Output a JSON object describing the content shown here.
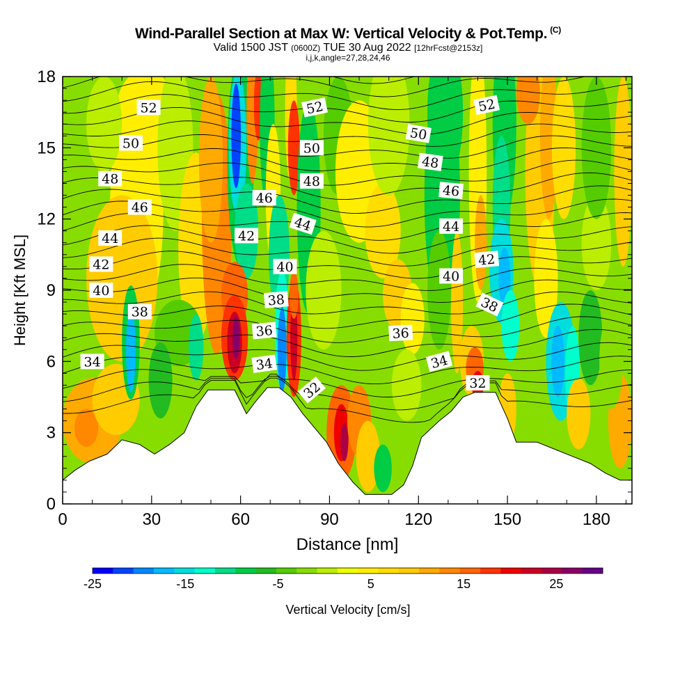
{
  "header": {
    "title": "Wind-Parallel Section at Max W: Vertical Velocity & Pot.Temp.",
    "title_suffix": "(C)",
    "subtitle_a": "Valid 1500 JST",
    "subtitle_b": "(0600Z)",
    "subtitle_c": "TUE 30 Aug 2022",
    "subtitle_d": "[12hrFcst@2153z]",
    "subtitle2": "i,j,k,angle=27,28,24,46"
  },
  "chart_data": {
    "type": "heatmap",
    "title": "Wind-Parallel Section at Max W: Vertical Velocity & Pot.Temp.",
    "xlabel": "Distance [nm]",
    "ylabel": "Height [Kft MSL]",
    "xlim": [
      0,
      192
    ],
    "ylim": [
      0,
      18
    ],
    "x_ticks": [
      0,
      30,
      60,
      90,
      120,
      150,
      180
    ],
    "y_ticks": [
      0,
      3,
      6,
      9,
      12,
      15,
      18
    ],
    "colorbar": {
      "label": "Vertical Velocity [cm/s]",
      "range": [
        -25,
        30
      ],
      "tick_values": [
        -25,
        -15,
        -5,
        5,
        15,
        25
      ],
      "tick_labels": [
        "-25",
        "-15",
        "-5",
        "5",
        "15",
        "25"
      ],
      "colors": [
        "#0000ff",
        "#0044ff",
        "#0088ff",
        "#00bbff",
        "#00dddd",
        "#00ffcc",
        "#00dd88",
        "#00cc44",
        "#22bb22",
        "#55cc00",
        "#88dd00",
        "#bbee00",
        "#eeff00",
        "#ffee00",
        "#ffdd00",
        "#ffcc00",
        "#ffaa00",
        "#ff8800",
        "#ff6600",
        "#ff3300",
        "#ee0000",
        "#cc0022",
        "#aa0044",
        "#880066",
        "#660088"
      ]
    },
    "terrain_kft": [
      [
        0,
        1.0
      ],
      [
        4,
        1.4
      ],
      [
        9,
        1.8
      ],
      [
        15,
        2.1
      ],
      [
        20,
        2.7
      ],
      [
        26,
        2.5
      ],
      [
        31,
        2.1
      ],
      [
        36,
        2.5
      ],
      [
        41,
        3.0
      ],
      [
        45,
        4.1
      ],
      [
        49,
        4.8
      ],
      [
        53,
        4.8
      ],
      [
        58,
        4.8
      ],
      [
        62,
        3.8
      ],
      [
        65,
        4.3
      ],
      [
        69,
        4.9
      ],
      [
        73,
        4.9
      ],
      [
        77,
        4.5
      ],
      [
        81,
        3.8
      ],
      [
        85,
        3.2
      ],
      [
        89,
        2.6
      ],
      [
        93,
        1.7
      ],
      [
        98,
        0.9
      ],
      [
        102,
        0.4
      ],
      [
        106,
        0.4
      ],
      [
        111,
        0.4
      ],
      [
        115,
        0.8
      ],
      [
        118,
        1.6
      ],
      [
        121,
        2.8
      ],
      [
        127,
        3.5
      ],
      [
        131,
        3.9
      ],
      [
        135,
        4.5
      ],
      [
        139,
        4.7
      ],
      [
        146,
        4.7
      ],
      [
        150,
        3.6
      ],
      [
        153,
        2.6
      ],
      [
        160,
        2.6
      ],
      [
        166,
        2.3
      ],
      [
        172,
        2.0
      ],
      [
        178,
        1.7
      ],
      [
        183,
        1.3
      ],
      [
        188,
        1.0
      ],
      [
        192,
        1.0
      ]
    ],
    "theta_contour_labels": [
      {
        "text": "52",
        "x": 29,
        "y": 16.7,
        "rot": 0
      },
      {
        "text": "50",
        "x": 23,
        "y": 15.2,
        "rot": 0
      },
      {
        "text": "48",
        "x": 16,
        "y": 13.7,
        "rot": 0
      },
      {
        "text": "46",
        "x": 26,
        "y": 12.5,
        "rot": 0
      },
      {
        "text": "44",
        "x": 16,
        "y": 11.2,
        "rot": 0
      },
      {
        "text": "42",
        "x": 13,
        "y": 10.1,
        "rot": 0
      },
      {
        "text": "40",
        "x": 13,
        "y": 9.0,
        "rot": 0
      },
      {
        "text": "38",
        "x": 26,
        "y": 8.1,
        "rot": 0
      },
      {
        "text": "34",
        "x": 10,
        "y": 6.0,
        "rot": 0
      },
      {
        "text": "46",
        "x": 68,
        "y": 12.9,
        "rot": 0
      },
      {
        "text": "42",
        "x": 62,
        "y": 11.3,
        "rot": 0
      },
      {
        "text": "40",
        "x": 75,
        "y": 10.0,
        "rot": 0
      },
      {
        "text": "38",
        "x": 72,
        "y": 8.6,
        "rot": -5
      },
      {
        "text": "36",
        "x": 68,
        "y": 7.3,
        "rot": -5
      },
      {
        "text": "34",
        "x": 68,
        "y": 5.9,
        "rot": -8
      },
      {
        "text": "44",
        "x": 81,
        "y": 11.8,
        "rot": 18
      },
      {
        "text": "52",
        "x": 85,
        "y": 16.7,
        "rot": -12
      },
      {
        "text": "50",
        "x": 84,
        "y": 15.0,
        "rot": 0
      },
      {
        "text": "48",
        "x": 84,
        "y": 13.6,
        "rot": 0
      },
      {
        "text": "32",
        "x": 84,
        "y": 4.8,
        "rot": -40
      },
      {
        "text": "36",
        "x": 114,
        "y": 7.2,
        "rot": -3
      },
      {
        "text": "50",
        "x": 120,
        "y": 15.6,
        "rot": 10
      },
      {
        "text": "48",
        "x": 124,
        "y": 14.4,
        "rot": 8
      },
      {
        "text": "46",
        "x": 131,
        "y": 13.2,
        "rot": 5
      },
      {
        "text": "44",
        "x": 131,
        "y": 11.7,
        "rot": 0
      },
      {
        "text": "40",
        "x": 131,
        "y": 9.6,
        "rot": 0
      },
      {
        "text": "34",
        "x": 127,
        "y": 6.0,
        "rot": -15
      },
      {
        "text": "32",
        "x": 140,
        "y": 5.1,
        "rot": 0
      },
      {
        "text": "52",
        "x": 143,
        "y": 16.8,
        "rot": -12
      },
      {
        "text": "42",
        "x": 143,
        "y": 10.3,
        "rot": -5
      },
      {
        "text": "38",
        "x": 144,
        "y": 8.4,
        "rot": 25
      }
    ]
  }
}
